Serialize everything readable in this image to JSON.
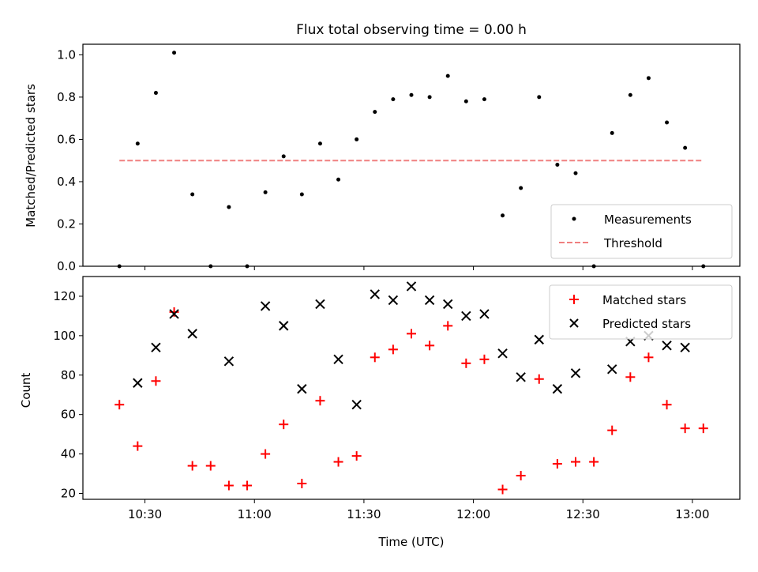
{
  "chart_data": [
    {
      "type": "scatter",
      "title": "Flux total observing time = 0.00 h",
      "ylabel": "Matched/Predicted stars",
      "xlabel": "",
      "ylim": [
        0.0,
        1.05
      ],
      "yticks": [
        0.0,
        0.2,
        0.4,
        0.6,
        0.8,
        1.0
      ],
      "ytick_labels": [
        "0.0",
        "0.2",
        "0.4",
        "0.6",
        "0.8",
        "1.0"
      ],
      "x": [
        "10:23",
        "10:28",
        "10:33",
        "10:38",
        "10:43",
        "10:48",
        "10:53",
        "10:58",
        "11:03",
        "11:08",
        "11:13",
        "11:18",
        "11:23",
        "11:28",
        "11:33",
        "11:38",
        "11:43",
        "11:48",
        "11:53",
        "11:58",
        "12:03",
        "12:08",
        "12:13",
        "12:18",
        "12:23",
        "12:28",
        "12:33",
        "12:38",
        "12:43",
        "12:48",
        "12:53",
        "12:58",
        "13:03"
      ],
      "series": [
        {
          "name": "Measurements",
          "marker": "dot",
          "color": "#000000",
          "values": [
            0.0,
            0.58,
            0.82,
            1.01,
            0.34,
            0.0,
            0.28,
            0.0,
            0.35,
            0.52,
            0.34,
            0.58,
            0.41,
            0.6,
            0.73,
            0.79,
            0.81,
            0.8,
            0.9,
            0.78,
            0.79,
            0.24,
            0.37,
            0.8,
            0.48,
            0.44,
            0.0,
            0.63,
            0.81,
            0.89,
            0.68,
            0.56,
            0.0
          ]
        },
        {
          "name": "Threshold",
          "marker": "dashed-line",
          "color": "#f08080",
          "x_range": [
            "10:23",
            "13:03"
          ],
          "value": 0.5
        }
      ],
      "legend": "bottom-right"
    },
    {
      "type": "scatter",
      "xlabel": "Time (UTC)",
      "ylabel": "Count",
      "ylim": [
        17,
        130
      ],
      "yticks": [
        20,
        40,
        60,
        80,
        100,
        120
      ],
      "ytick_labels": [
        "20",
        "40",
        "60",
        "80",
        "100",
        "120"
      ],
      "xlim": [
        "10:13",
        "13:13"
      ],
      "xticks": [
        "10:30",
        "11:00",
        "11:30",
        "12:00",
        "12:30",
        "13:00"
      ],
      "xtick_labels": [
        "10:30",
        "11:00",
        "11:30",
        "12:00",
        "12:30",
        "13:00"
      ],
      "series": [
        {
          "name": "Matched stars",
          "marker": "plus",
          "color": "#ff0000",
          "x": [
            "10:23",
            "10:28",
            "10:33",
            "10:38",
            "10:43",
            "10:48",
            "10:53",
            "10:58",
            "11:03",
            "11:08",
            "11:13",
            "11:18",
            "11:23",
            "11:28",
            "11:33",
            "11:38",
            "11:43",
            "11:48",
            "11:53",
            "11:58",
            "12:03",
            "12:08",
            "12:13",
            "12:18",
            "12:23",
            "12:28",
            "12:33",
            "12:38",
            "12:43",
            "12:48",
            "12:53",
            "12:58",
            "13:03"
          ],
          "values": [
            65,
            44,
            77,
            112,
            34,
            34,
            24,
            24,
            40,
            55,
            25,
            67,
            36,
            39,
            89,
            93,
            101,
            95,
            105,
            86,
            88,
            22,
            29,
            78,
            35,
            36,
            36,
            52,
            79,
            89,
            65,
            53,
            53
          ]
        },
        {
          "name": "Predicted stars",
          "marker": "x",
          "color": "#000000",
          "x": [
            "10:28",
            "10:33",
            "10:38",
            "10:43",
            "10:53",
            "11:03",
            "11:08",
            "11:13",
            "11:18",
            "11:23",
            "11:28",
            "11:33",
            "11:38",
            "11:43",
            "11:48",
            "11:53",
            "11:58",
            "12:03",
            "12:08",
            "12:13",
            "12:18",
            "12:23",
            "12:28",
            "12:38",
            "12:43",
            "12:48",
            "12:53",
            "12:58"
          ],
          "values": [
            76,
            94,
            111,
            101,
            87,
            115,
            105,
            73,
            116,
            88,
            65,
            121,
            118,
            125,
            118,
            116,
            110,
            111,
            91,
            79,
            98,
            73,
            81,
            83,
            97,
            100,
            95,
            94
          ]
        }
      ],
      "legend": "top-right"
    }
  ]
}
